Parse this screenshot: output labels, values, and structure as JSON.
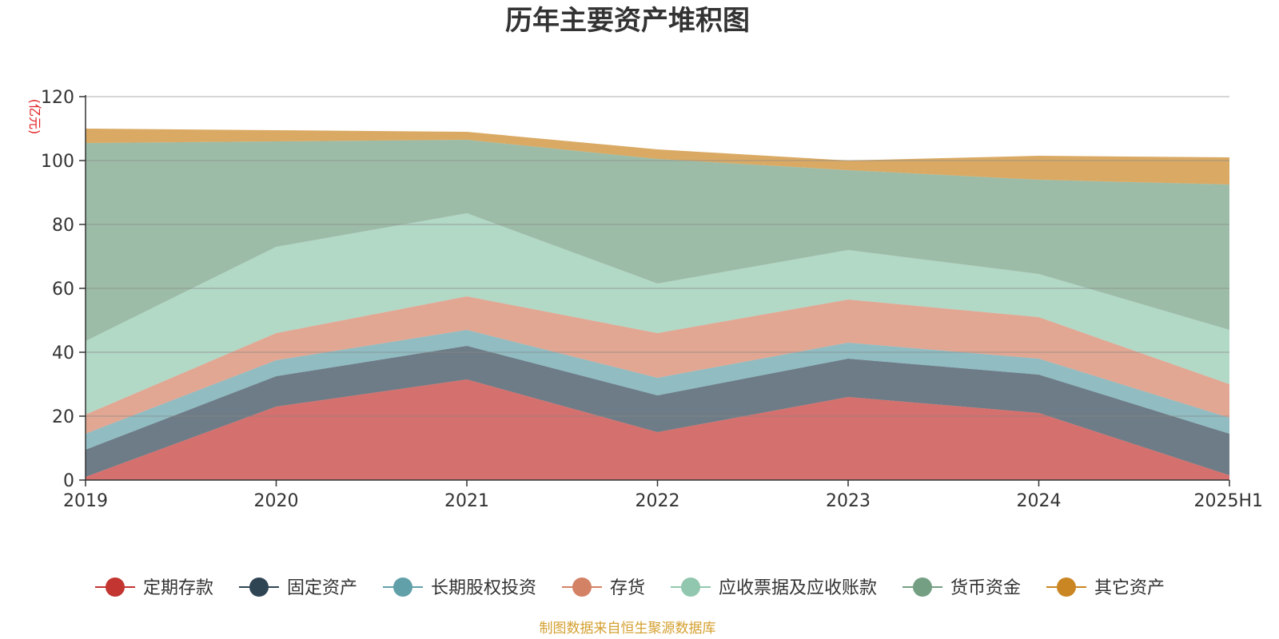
{
  "chart_data": {
    "type": "area",
    "stacked": true,
    "title": "历年主要资产堆积图",
    "unit_label": "(亿元)",
    "categories": [
      "2019",
      "2020",
      "2021",
      "2022",
      "2023",
      "2024",
      "2025H1"
    ],
    "ylim": [
      0,
      120
    ],
    "yticks": [
      0,
      20,
      40,
      60,
      80,
      100,
      120
    ],
    "grid": true,
    "legend_position": "bottom",
    "series": [
      {
        "name": "定期存款",
        "color": "#c23531",
        "values": [
          1,
          23,
          31.5,
          15,
          26,
          21,
          1.5
        ]
      },
      {
        "name": "固定资产",
        "color": "#2f4554",
        "values": [
          8.5,
          9.5,
          10.5,
          11.5,
          12,
          12,
          13
        ]
      },
      {
        "name": "长期股权投资",
        "color": "#61a0a8",
        "values": [
          5,
          5,
          5,
          5.5,
          5,
          5,
          5
        ]
      },
      {
        "name": "存货",
        "color": "#d48265",
        "values": [
          6,
          8.5,
          10.5,
          14,
          13.5,
          13,
          10.5
        ]
      },
      {
        "name": "应收票据及应收账款",
        "color": "#91c7ae",
        "values": [
          23,
          27,
          26,
          15.5,
          15.5,
          13.5,
          17
        ]
      },
      {
        "name": "货币资金",
        "color": "#749f83",
        "values": [
          62,
          33,
          23,
          39,
          25,
          29.5,
          45.5
        ]
      },
      {
        "name": "其它资产",
        "color": "#ca8622",
        "values": [
          4.5,
          3.5,
          2.5,
          3,
          3,
          7.5,
          8.5
        ]
      }
    ]
  },
  "footer": {
    "source": "制图数据来自恒生聚源数据库"
  }
}
